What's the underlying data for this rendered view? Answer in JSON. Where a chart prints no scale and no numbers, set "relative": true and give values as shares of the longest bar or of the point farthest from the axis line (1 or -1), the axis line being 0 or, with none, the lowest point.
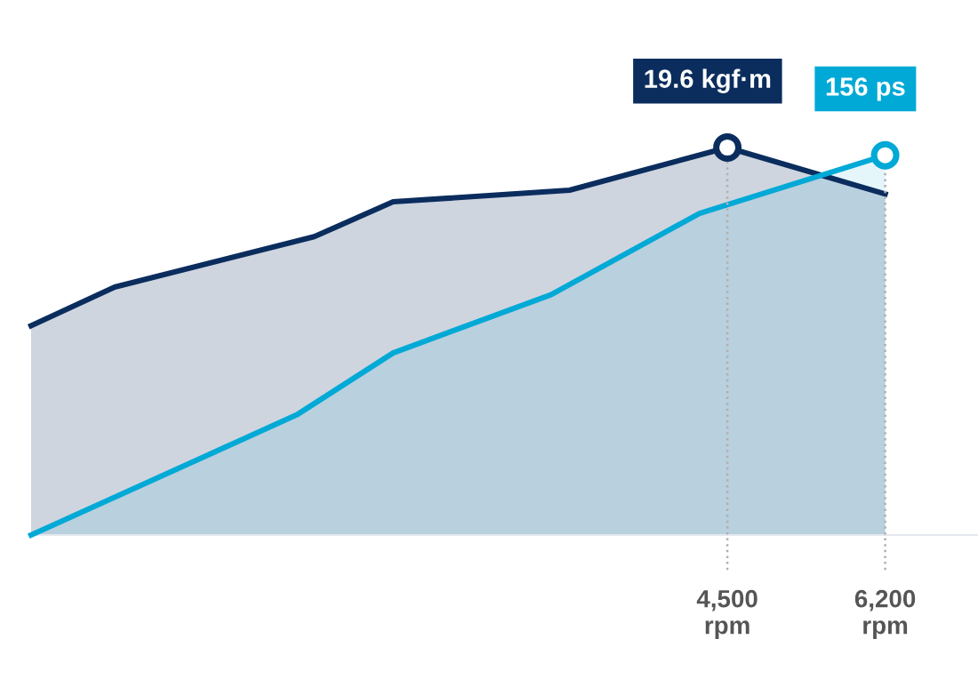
{
  "chart_data": {
    "type": "area",
    "relative": true,
    "series": [
      {
        "color": "#0b2d5e",
        "x": [
          -3000,
          -2100,
          50,
          900,
          2800,
          4500,
          6200
        ],
        "values": [
          0.54,
          0.64,
          0.77,
          0.86,
          0.89,
          1,
          0.88
        ]
      },
      {
        "color": "#00a9d6",
        "x": [
          -3000,
          -140,
          900,
          2600,
          4200,
          6200
        ],
        "values": [
          0,
          0.31,
          0.47,
          0.62,
          0.83,
          0.98
        ]
      }
    ],
    "xlim": [
      -3000,
      7200
    ],
    "xticks": [
      {
        "value": 4500,
        "label": "4,500\nrpm"
      },
      {
        "value": 6200,
        "label": "6,200\nrpm"
      }
    ],
    "ref_lines": [
      {
        "axis": "x",
        "value": 4500,
        "color": "#b0b0b0",
        "line_style": "dotted"
      },
      {
        "axis": "x",
        "value": 6200,
        "color": "#b0b0b0",
        "line_style": "dotted"
      }
    ],
    "annotations": [
      {
        "text": "19.6 kgf·m",
        "x": 4500,
        "y": 1
      },
      {
        "text": "156 ps",
        "x": 6200,
        "y": 0.98
      }
    ],
    "grid": false,
    "legend": false
  }
}
